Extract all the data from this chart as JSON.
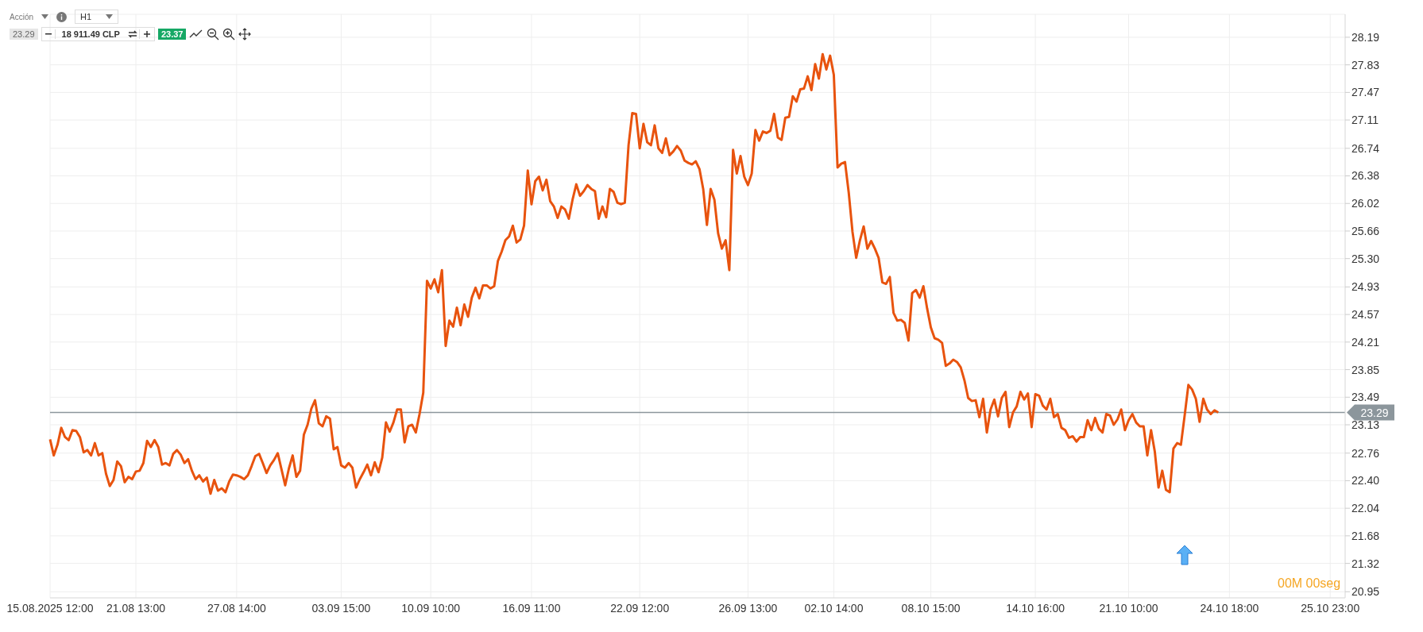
{
  "chart_data": {
    "type": "line",
    "grid": true,
    "annotations": [
      "Acción",
      "H1",
      "23.29",
      "18 911.49 CLP",
      "23.37",
      "00M 00seg"
    ],
    "categories": [
      "15.08.2025 12:00",
      null,
      null,
      null,
      null,
      null,
      null,
      null,
      null,
      null,
      null,
      null,
      null,
      null,
      null,
      null,
      null,
      null,
      null,
      null,
      null,
      null,
      null,
      "21.08 13:00",
      null,
      null,
      null,
      null,
      null,
      null,
      null,
      null,
      null,
      null,
      null,
      null,
      null,
      null,
      null,
      null,
      null,
      null,
      null,
      null,
      null,
      null,
      null,
      null,
      null,
      null,
      "27.08 14:00",
      null,
      null,
      null,
      null,
      null,
      null,
      null,
      null,
      null,
      null,
      null,
      null,
      null,
      null,
      null,
      null,
      null,
      null,
      null,
      null,
      null,
      null,
      null,
      null,
      null,
      null,
      null,
      "03.09 15:00",
      null,
      null,
      null,
      null,
      null,
      null,
      null,
      null,
      null,
      null,
      null,
      null,
      null,
      null,
      null,
      null,
      null,
      null,
      null,
      null,
      null,
      null,
      null,
      "10.09 10:00",
      null,
      null,
      null,
      null,
      null,
      null,
      null,
      null,
      null,
      null,
      null,
      null,
      null,
      null,
      null,
      null,
      null,
      null,
      null,
      null,
      null,
      null,
      null,
      null,
      null,
      null,
      "16.09 11:00",
      null,
      null,
      null,
      null,
      null,
      null,
      null,
      null,
      null,
      null,
      null,
      null,
      null,
      null,
      null,
      null,
      null,
      null,
      null,
      null,
      null,
      null,
      null,
      null,
      null,
      null,
      null,
      null,
      "22.09 12:00",
      null,
      null,
      null,
      null,
      null,
      null,
      null,
      null,
      null,
      null,
      null,
      null,
      null,
      null,
      null,
      null,
      null,
      null,
      null,
      null,
      null,
      null,
      null,
      null,
      null,
      null,
      null,
      null,
      "26.09 13:00",
      null,
      null,
      null,
      null,
      null,
      null,
      null,
      null,
      null,
      null,
      null,
      null,
      null,
      null,
      null,
      null,
      null,
      null,
      null,
      null,
      null,
      null,
      "02.10 14:00",
      null,
      null,
      null,
      null,
      null,
      null,
      null,
      null,
      null,
      null,
      null,
      null,
      null,
      null,
      null,
      null,
      null,
      null,
      null,
      null,
      null,
      null,
      null,
      null,
      null,
      "08.10 15:00",
      null,
      null,
      null,
      null,
      null,
      null,
      null,
      null,
      null,
      null,
      null,
      null,
      null,
      null,
      null,
      null,
      null,
      null,
      null,
      null,
      null,
      null,
      null,
      null,
      null,
      null,
      null,
      "14.10 16:00",
      null,
      null,
      null,
      null,
      null,
      null,
      null,
      null,
      null,
      null,
      null,
      null,
      null,
      null,
      null,
      null,
      null,
      null,
      null,
      null,
      null,
      null,
      null,
      null,
      "21.10 10:00",
      null,
      null,
      null,
      null,
      null,
      null,
      null,
      null,
      null,
      null,
      null,
      null,
      null,
      null,
      null,
      null,
      null,
      null,
      null,
      null,
      null,
      null,
      null,
      null,
      null,
      null,
      "24.10 18:00",
      null,
      null,
      null,
      null,
      null,
      null,
      null,
      null,
      null,
      null,
      null,
      null,
      null,
      null,
      null,
      null,
      null,
      null,
      null,
      null,
      null,
      null,
      null,
      null,
      null,
      null,
      "25.10 23:00",
      null,
      null,
      null,
      null
    ],
    "ylim": [
      20.87,
      28.49
    ],
    "yticks": [
      {
        "value": 20.95,
        "label": "20.95"
      },
      {
        "value": 21.32,
        "label": "21.32"
      },
      {
        "value": 21.68,
        "label": "21.68"
      },
      {
        "value": 22.04,
        "label": "22.04"
      },
      {
        "value": 22.4,
        "label": "22.40"
      },
      {
        "value": 22.76,
        "label": "22.76"
      },
      {
        "value": 23.13,
        "label": "23.13"
      },
      {
        "value": 23.49,
        "label": "23.49"
      },
      {
        "value": 23.85,
        "label": "23.85"
      },
      {
        "value": 24.21,
        "label": "24.21"
      },
      {
        "value": 24.57,
        "label": "24.57"
      },
      {
        "value": 24.93,
        "label": "24.93"
      },
      {
        "value": 25.3,
        "label": "25.30"
      },
      {
        "value": 25.66,
        "label": "25.66"
      },
      {
        "value": 26.02,
        "label": "26.02"
      },
      {
        "value": 26.38,
        "label": "26.38"
      },
      {
        "value": 26.74,
        "label": "26.74"
      },
      {
        "value": 27.11,
        "label": "27.11"
      },
      {
        "value": 27.47,
        "label": "27.47"
      },
      {
        "value": 27.83,
        "label": "27.83"
      },
      {
        "value": 28.19,
        "label": "28.19"
      }
    ],
    "ref_lines": [
      {
        "axis": "y",
        "value": 23.29,
        "label": "23.29",
        "color": "#8c969c"
      }
    ],
    "series": [
      {
        "color": "#e8530e",
        "values": [
          22.94,
          22.73,
          22.87,
          23.09,
          22.97,
          22.93,
          23.06,
          23.05,
          22.97,
          22.77,
          22.8,
          22.73,
          22.89,
          22.73,
          22.76,
          22.49,
          22.33,
          22.41,
          22.65,
          22.59,
          22.38,
          22.45,
          22.42,
          22.52,
          22.53,
          22.63,
          22.92,
          22.84,
          22.93,
          22.84,
          22.61,
          22.63,
          22.6,
          22.75,
          22.8,
          22.74,
          22.63,
          22.68,
          22.53,
          22.42,
          22.47,
          22.39,
          22.44,
          22.23,
          22.41,
          22.27,
          22.3,
          22.25,
          22.39,
          22.48,
          22.47,
          22.45,
          22.42,
          22.47,
          22.59,
          22.72,
          22.75,
          22.63,
          22.5,
          22.6,
          22.67,
          22.76,
          22.55,
          22.34,
          22.56,
          22.73,
          22.45,
          22.53,
          23.0,
          23.13,
          23.34,
          23.45,
          23.15,
          23.11,
          23.24,
          23.21,
          22.81,
          22.84,
          22.6,
          22.57,
          22.63,
          22.57,
          22.31,
          22.42,
          22.51,
          22.61,
          22.47,
          22.64,
          22.51,
          22.7,
          23.16,
          23.04,
          23.16,
          23.33,
          23.33,
          22.9,
          23.11,
          23.13,
          23.03,
          23.27,
          23.55,
          25.01,
          24.91,
          25.03,
          24.86,
          25.15,
          24.16,
          24.49,
          24.41,
          24.66,
          24.43,
          24.7,
          24.54,
          24.79,
          24.92,
          24.78,
          24.95,
          24.95,
          24.91,
          24.94,
          25.27,
          25.39,
          25.54,
          25.59,
          25.73,
          25.51,
          25.55,
          25.73,
          26.45,
          26.01,
          26.31,
          26.37,
          26.19,
          26.33,
          26.05,
          25.98,
          25.83,
          25.98,
          25.94,
          25.82,
          26.07,
          26.27,
          26.12,
          26.18,
          26.26,
          26.21,
          26.18,
          25.82,
          25.98,
          25.84,
          26.21,
          26.17,
          26.03,
          26.01,
          26.03,
          26.78,
          27.2,
          27.19,
          26.74,
          27.06,
          26.82,
          26.78,
          27.04,
          26.74,
          26.68,
          26.87,
          26.65,
          26.7,
          26.77,
          26.71,
          26.58,
          26.55,
          26.53,
          26.57,
          26.47,
          26.21,
          25.74,
          26.21,
          26.07,
          25.63,
          25.43,
          25.54,
          25.15,
          26.72,
          26.41,
          26.64,
          26.37,
          26.26,
          26.41,
          26.98,
          26.84,
          26.96,
          26.94,
          26.97,
          27.19,
          26.88,
          26.85,
          27.14,
          27.15,
          27.42,
          27.35,
          27.51,
          27.52,
          27.68,
          27.5,
          27.84,
          27.65,
          27.97,
          27.77,
          27.95,
          27.7,
          26.49,
          26.54,
          26.56,
          26.16,
          25.65,
          25.31,
          25.54,
          25.72,
          25.43,
          25.53,
          25.43,
          25.31,
          24.99,
          24.97,
          25.06,
          24.59,
          24.49,
          24.5,
          24.46,
          24.23,
          24.85,
          24.89,
          24.79,
          24.94,
          24.65,
          24.4,
          24.26,
          24.24,
          24.2,
          23.9,
          23.93,
          23.98,
          23.95,
          23.88,
          23.71,
          23.48,
          23.44,
          23.45,
          23.23,
          23.47,
          23.03,
          23.33,
          23.46,
          23.24,
          23.48,
          23.56,
          23.1,
          23.29,
          23.37,
          23.56,
          23.46,
          23.54,
          23.1,
          23.53,
          23.51,
          23.38,
          23.33,
          23.47,
          23.23,
          23.27,
          23.09,
          23.06,
          22.96,
          22.98,
          22.91,
          22.97,
          22.97,
          23.19,
          23.06,
          23.22,
          23.08,
          23.03,
          23.27,
          23.25,
          23.13,
          23.2,
          23.33,
          23.06,
          23.19,
          23.27,
          23.16,
          23.11,
          23.11,
          22.73,
          23.06,
          22.78,
          22.31,
          22.53,
          22.28,
          22.25,
          22.82,
          22.89,
          22.87,
          23.25,
          23.65,
          23.59,
          23.47,
          23.17,
          23.47,
          23.33,
          23.27,
          23.32,
          23.29,
          null,
          null,
          null,
          null,
          null,
          null,
          null,
          null,
          null,
          null,
          null,
          null,
          null,
          null,
          null,
          null,
          null,
          null,
          null,
          null,
          null,
          null,
          null,
          null,
          null,
          null,
          null,
          null,
          null,
          null,
          null,
          null,
          null,
          null
        ]
      }
    ]
  }
}
